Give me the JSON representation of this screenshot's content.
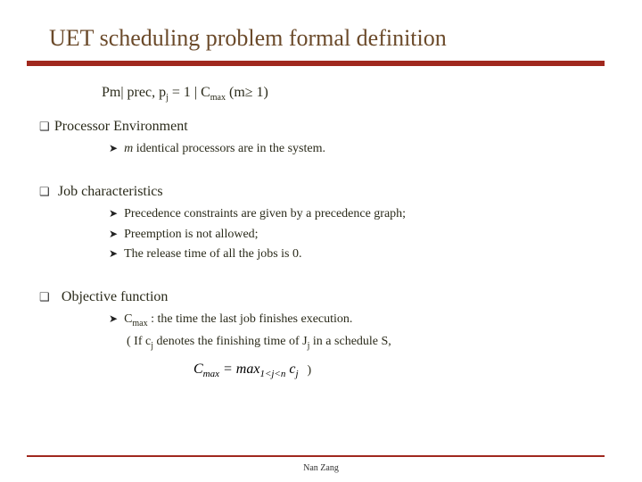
{
  "title": "UET scheduling problem formal definition",
  "notation_html": "Pm| prec, p<span class='subscr'>j</span> = 1 | C<span class='subscr'>max</span> (m≥ 1)",
  "sec1": {
    "head": "Processor Environment",
    "items": [
      "<span class='italic'>m</span> identical processors are in the system."
    ]
  },
  "sec2": {
    "head": "Job characteristics",
    "items": [
      "Precedence constraints are given by a precedence graph;",
      "Preemption is not allowed;",
      "The release time of all the jobs is 0."
    ]
  },
  "sec3": {
    "head": "Objective function",
    "item_html": "C<span class='subscr'>max</span> : the time the last job finishes execution.",
    "note_html": "( If c<span class='subscr'>j</span> denotes the finishing time of J<span class='subscr'>j</span> in a schedule S,",
    "formula_html": "C<sub style='font-size:11px'>max</sub> = max<sub style='font-size:11px'>1&lt;j&lt;n</sub> c<sub style='font-size:11px'>j</sub>",
    "close": ")"
  },
  "author": "Nan Zang",
  "colors": {
    "title": "#6b4a2a",
    "rule": "#a0281e",
    "text": "#2a2a1a"
  }
}
